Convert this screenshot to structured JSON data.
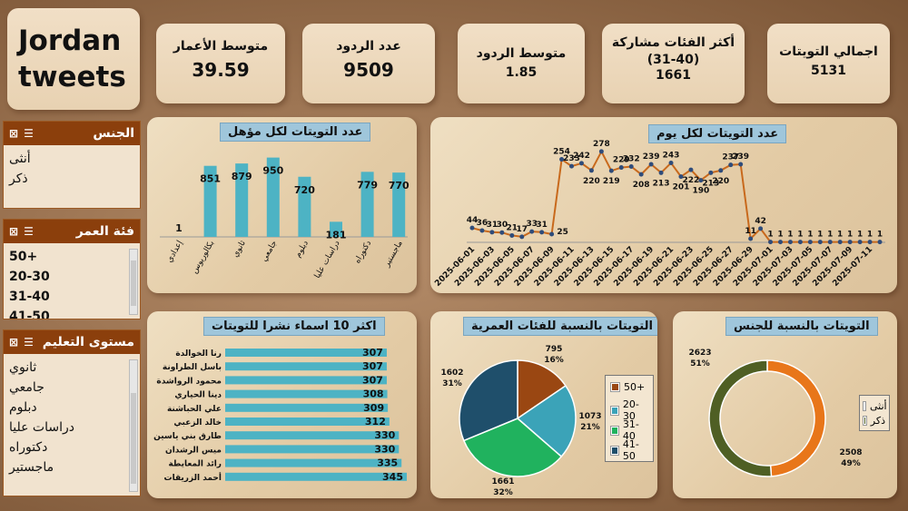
{
  "title": {
    "line1": "Jordan",
    "line2": "tweets"
  },
  "kpis": {
    "total_tweets": {
      "label": "اجمالي التويتات",
      "value": "5131"
    },
    "top_age": {
      "label": "أكثر الفئات مشاركة",
      "group": "(31-40)",
      "value": "1661"
    },
    "avg_replies": {
      "label": "متوسط الردود",
      "value": "1.85"
    },
    "replies": {
      "label": "عدد الردود",
      "value": "9509"
    },
    "avg_age": {
      "label": "متوسط الأعمار",
      "value": "39.59"
    }
  },
  "slicers": {
    "gender": {
      "title": "الجنس",
      "items": [
        "أنثى",
        "ذكر"
      ]
    },
    "age": {
      "title": "فئة العمر",
      "items": [
        "50+",
        "20-30",
        "31-40",
        "41-50"
      ]
    },
    "education": {
      "title": "مستوى التعليم",
      "items": [
        "ثانوي",
        "جامعي",
        "دبلوم",
        "دراسات عليا",
        "دكتوراه",
        "ماجستير"
      ]
    }
  },
  "colors": {
    "bar": "#4db3c4",
    "line": "#c8691c",
    "marker": "#2f4c7a",
    "gender_f": "#e8761a",
    "gender_m": "#4f5f24"
  },
  "chart_data": [
    {
      "type": "bar",
      "title": "عدد التويتات لكل مؤهل",
      "categories": [
        "إعدادي",
        "بكالوريوس",
        "ثانوي",
        "جامعي",
        "دبلوم",
        "دراسات عليا",
        "دكتوراه",
        "ماجستير"
      ],
      "values": [
        1,
        851,
        879,
        950,
        720,
        181,
        779,
        770
      ],
      "ylim": [
        0,
        1000
      ]
    },
    {
      "type": "line",
      "title": "عدد التويتات لكل يوم",
      "x": [
        "2025-06-01",
        "2025-06-02",
        "2025-06-03",
        "2025-06-04",
        "2025-06-05",
        "2025-06-06",
        "2025-06-07",
        "2025-06-08",
        "2025-06-09",
        "2025-06-10",
        "2025-06-11",
        "2025-06-12",
        "2025-06-13",
        "2025-06-14",
        "2025-06-15",
        "2025-06-16",
        "2025-06-17",
        "2025-06-18",
        "2025-06-19",
        "2025-06-20",
        "2025-06-21",
        "2025-06-22",
        "2025-06-23",
        "2025-06-24",
        "2025-06-25",
        "2025-06-26",
        "2025-06-27",
        "2025-06-28",
        "2025-06-29",
        "2025-06-30",
        "2025-07-01",
        "2025-07-02",
        "2025-07-03",
        "2025-07-04",
        "2025-07-05",
        "2025-07-06",
        "2025-07-07",
        "2025-07-08",
        "2025-07-09",
        "2025-07-10",
        "2025-07-11",
        "2025-07-12"
      ],
      "x_tick_labels": [
        "2025-06-01",
        "2025-06-03",
        "2025-06-05",
        "2025-06-07",
        "2025-06-09",
        "2025-06-11",
        "2025-06-13",
        "2025-06-15",
        "2025-06-17",
        "2025-06-19",
        "2025-06-21",
        "2025-06-23",
        "2025-06-25",
        "2025-06-27",
        "2025-06-29",
        "2025-07-01",
        "2025-07-03",
        "2025-07-05",
        "2025-07-07",
        "2025-07-09",
        "2025-07-11"
      ],
      "values": [
        44,
        36,
        31,
        30,
        21,
        17,
        33,
        31,
        25,
        254,
        233,
        242,
        220,
        278,
        219,
        229,
        232,
        208,
        239,
        213,
        243,
        201,
        222,
        190,
        213,
        220,
        237,
        239,
        11,
        42,
        1,
        1,
        1,
        1,
        1,
        1,
        1,
        1,
        1,
        1,
        1,
        1
      ],
      "ylim": [
        0,
        300
      ]
    },
    {
      "type": "bar",
      "title": "اكثر 10 اسماء نشرا للتويتات",
      "categories": [
        "رنا الخوالدة",
        "باسل الطراونة",
        "محمود الرواشدة",
        "دينا الحياري",
        "علي الحباشنة",
        "خالد الزعبي",
        "طارق بني ياسين",
        "ميس الرشدان",
        "رائد المعايطة",
        "أحمد الزريقات"
      ],
      "values": [
        307,
        307,
        307,
        308,
        309,
        312,
        330,
        330,
        335,
        345
      ],
      "orientation": "horizontal"
    },
    {
      "type": "pie",
      "title": "التويتات بالنسبة للفئات العمرية",
      "categories": [
        "50+",
        "20-30",
        "31-40",
        "41-50"
      ],
      "values": [
        795,
        1073,
        1661,
        1602
      ],
      "percents": [
        "16%",
        "21%",
        "32%",
        "31%"
      ],
      "colors": [
        "#9a4712",
        "#3ba3b8",
        "#20b25e",
        "#1f4f6b"
      ]
    },
    {
      "type": "pie",
      "title": "التويتات بالنسبة للجنس",
      "categories": [
        "أنثى",
        "ذكر"
      ],
      "values": [
        2508,
        2623
      ],
      "percents": [
        "49%",
        "51%"
      ],
      "colors": [
        "#e8761a",
        "#4f5f24"
      ]
    }
  ]
}
